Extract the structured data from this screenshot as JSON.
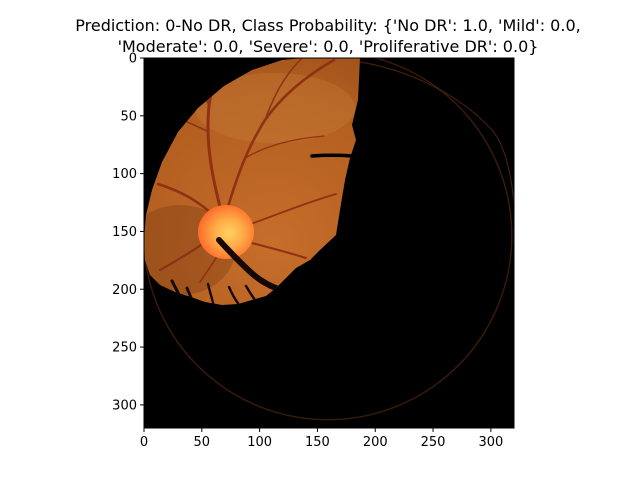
{
  "figure": {
    "title_line_1": "Prediction: 0-No DR, Class Probability: {'No DR': 1.0, 'Mild': 0.0,",
    "title_line_2": "'Moderate': 0.0, 'Severe': 0.0, 'Proliferative DR': 0.0}"
  },
  "image_axes": {
    "x_ticks": [
      "0",
      "50",
      "100",
      "150",
      "200",
      "250",
      "300"
    ],
    "y_ticks": [
      "0",
      "50",
      "100",
      "150",
      "200",
      "250",
      "300"
    ],
    "xlim": [
      0,
      320
    ],
    "ylim": [
      0,
      320
    ]
  },
  "colors": {
    "background": "#ffffff",
    "image_background": "#000000",
    "retina_base": "#b25e20",
    "retina_dark": "#7a3a10",
    "optic_disc": "#ff7a30",
    "optic_disc_center": "#ffd060",
    "vessel": "#8e2f14",
    "axis": "#000000"
  }
}
